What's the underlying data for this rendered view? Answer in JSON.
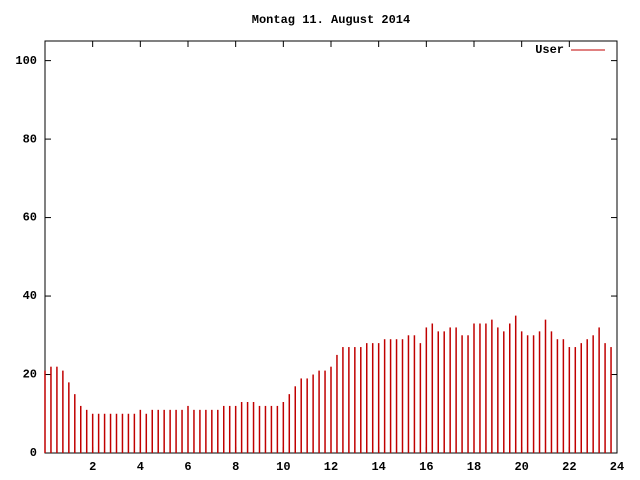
{
  "chart_data": {
    "type": "impulse",
    "title": "Montag 11. August 2014",
    "x": [
      0,
      0.25,
      0.5,
      0.75,
      1,
      1.25,
      1.5,
      1.75,
      2,
      2.25,
      2.5,
      2.75,
      3,
      3.25,
      3.5,
      3.75,
      4,
      4.25,
      4.5,
      4.75,
      5,
      5.25,
      5.5,
      5.75,
      6,
      6.25,
      6.5,
      6.75,
      7,
      7.25,
      7.5,
      7.75,
      8,
      8.25,
      8.5,
      8.75,
      9,
      9.25,
      9.5,
      9.75,
      10,
      10.25,
      10.5,
      10.75,
      11,
      11.25,
      11.5,
      11.75,
      12,
      12.25,
      12.5,
      12.75,
      13,
      13.25,
      13.5,
      13.75,
      14,
      14.25,
      14.5,
      14.75,
      15,
      15.25,
      15.5,
      15.75,
      16,
      16.25,
      16.5,
      16.75,
      17,
      17.25,
      17.5,
      17.75,
      18,
      18.25,
      18.5,
      18.75,
      19,
      19.25,
      19.5,
      19.75,
      20,
      20.25,
      20.5,
      20.75,
      21,
      21.25,
      21.5,
      21.75,
      22,
      22.25,
      22.5,
      22.75,
      23,
      23.25,
      23.5,
      23.75
    ],
    "series": [
      {
        "name": "User",
        "color": "#c00000",
        "values": [
          21,
          22,
          22,
          21,
          18,
          15,
          12,
          11,
          10,
          10,
          10,
          10,
          10,
          10,
          10,
          10,
          11,
          10,
          11,
          11,
          11,
          11,
          11,
          11,
          12,
          11,
          11,
          11,
          11,
          11,
          12,
          12,
          12,
          13,
          13,
          13,
          12,
          12,
          12,
          12,
          13,
          15,
          17,
          19,
          19,
          20,
          21,
          21,
          22,
          25,
          27,
          27,
          27,
          27,
          28,
          28,
          28,
          29,
          29,
          29,
          29,
          30,
          30,
          28,
          32,
          33,
          31,
          31,
          32,
          32,
          30,
          30,
          33,
          33,
          33,
          34,
          32,
          31,
          33,
          35,
          31,
          30,
          30,
          31,
          34,
          31,
          29,
          29,
          27,
          27,
          28,
          29,
          30,
          32,
          28,
          27
        ]
      }
    ],
    "xlim": [
      0,
      24
    ],
    "xticks": [
      2,
      4,
      6,
      8,
      10,
      12,
      14,
      16,
      18,
      20,
      22,
      24
    ],
    "ylim": [
      0,
      105
    ],
    "yticks": [
      0,
      20,
      40,
      60,
      80,
      100
    ],
    "legend": "top-right"
  }
}
